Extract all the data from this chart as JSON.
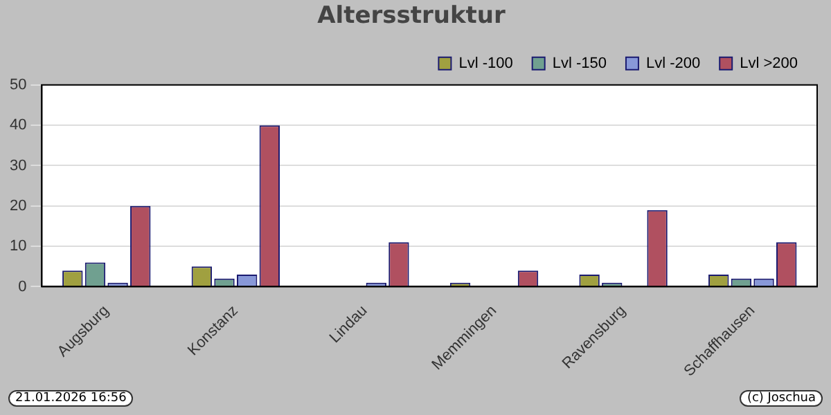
{
  "chart_data": {
    "type": "bar",
    "title": "Altersstruktur",
    "categories": [
      "Augsburg",
      "Konstanz",
      "Lindau",
      "Memmingen",
      "Ravensburg",
      "Schaffhausen"
    ],
    "series": [
      {
        "name": "Lvl -100",
        "color": "#a0a040",
        "values": [
          4,
          5,
          0,
          1,
          3,
          3
        ]
      },
      {
        "name": "Lvl -150",
        "color": "#70a090",
        "values": [
          6,
          2,
          0,
          0,
          1,
          2
        ]
      },
      {
        "name": "Lvl -200",
        "color": "#8898d8",
        "values": [
          1,
          3,
          1,
          0,
          0,
          2
        ]
      },
      {
        "name": "Lvl >200",
        "color": "#b05060",
        "values": [
          20,
          40,
          11,
          4,
          19,
          11
        ]
      }
    ],
    "ylim": [
      0,
      50
    ],
    "yticks": [
      0,
      10,
      20,
      30,
      40,
      50
    ],
    "grid": "y",
    "legend": "top right",
    "annotations": [
      "21.01.2026 16:56",
      "(c) Joschua"
    ]
  }
}
